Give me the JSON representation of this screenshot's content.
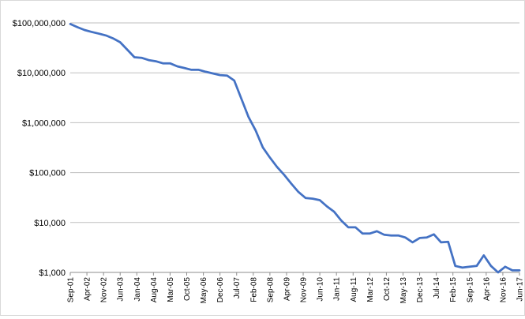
{
  "chart_data": {
    "type": "line",
    "title": "",
    "xlabel": "",
    "ylabel": "",
    "yscale": "log",
    "ylim": [
      1000,
      100000000
    ],
    "grid": true,
    "legend": "none",
    "line_color": "#4472c4",
    "y_tick_labels": [
      "$100,000,000",
      "$10,000,000",
      "$1,000,000",
      "$100,000",
      "$10,000",
      "$1,000"
    ],
    "y_tick_values": [
      100000000,
      10000000,
      1000000,
      100000,
      10000,
      1000
    ],
    "x_tick_labels": [
      "Sep-01",
      "Apr-02",
      "Nov-02",
      "Jun-03",
      "Jan-04",
      "Aug-04",
      "Mar-05",
      "Oct-05",
      "May-06",
      "Dec-06",
      "Jul-07",
      "Feb-08",
      "Sep-08",
      "Apr-09",
      "Nov-09",
      "Jun-10",
      "Jan-11",
      "Aug-11",
      "Mar-12",
      "Oct-12",
      "May-13",
      "Dec-13",
      "Jul-14",
      "Feb-15",
      "Sep-15",
      "Apr-16",
      "Nov-16",
      "Jun-17"
    ],
    "x": [
      "2001-09",
      "2001-12",
      "2002-03",
      "2002-06",
      "2002-09",
      "2002-12",
      "2003-03",
      "2003-06",
      "2003-09",
      "2003-12",
      "2004-03",
      "2004-06",
      "2004-09",
      "2004-12",
      "2005-03",
      "2005-06",
      "2005-09",
      "2005-12",
      "2006-03",
      "2006-06",
      "2006-09",
      "2006-12",
      "2007-03",
      "2007-06",
      "2007-09",
      "2007-12",
      "2008-03",
      "2008-06",
      "2008-09",
      "2008-12",
      "2009-03",
      "2009-06",
      "2009-09",
      "2009-12",
      "2010-03",
      "2010-06",
      "2010-09",
      "2010-12",
      "2011-03",
      "2011-06",
      "2011-09",
      "2011-12",
      "2012-03",
      "2012-06",
      "2012-09",
      "2012-12",
      "2013-03",
      "2013-06",
      "2013-09",
      "2013-12",
      "2014-03",
      "2014-06",
      "2014-09",
      "2014-12",
      "2015-03",
      "2015-06",
      "2015-09",
      "2015-12",
      "2016-03",
      "2016-06",
      "2016-09",
      "2016-12",
      "2017-03",
      "2017-06"
    ],
    "values": [
      95000000,
      82000000,
      72000000,
      66000000,
      61000000,
      56000000,
      49000000,
      41000000,
      29000000,
      20500000,
      20000000,
      18000000,
      17000000,
      15500000,
      15500000,
      13500000,
      12500000,
      11500000,
      11500000,
      10500000,
      9700000,
      9000000,
      8800000,
      7000000,
      3000000,
      1300000,
      700000,
      320000,
      200000,
      130000,
      90000,
      60000,
      41000,
      31000,
      30000,
      28000,
      21000,
      16500,
      11000,
      8000,
      8000,
      6000,
      6000,
      6700,
      5700,
      5500,
      5500,
      5000,
      4000,
      4900,
      5000,
      5800,
      4000,
      4100,
      1350,
      1250,
      1300,
      1350,
      2200,
      1350,
      1000,
      1300,
      1100,
      1100
    ]
  }
}
